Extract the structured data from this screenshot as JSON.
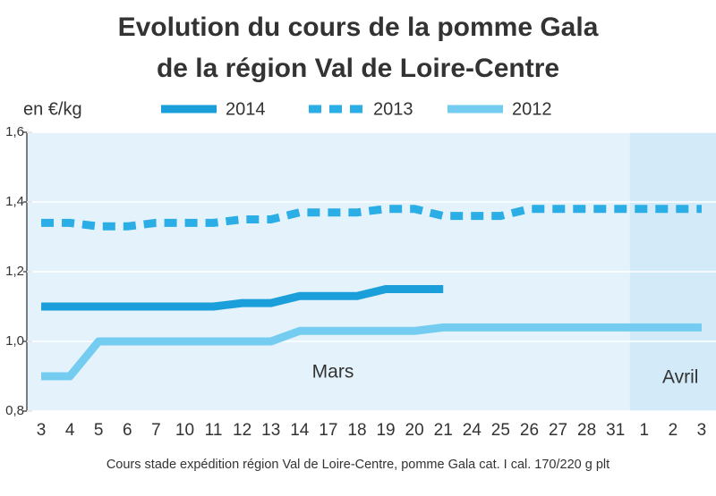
{
  "chart_data": {
    "type": "line",
    "title": "Evolution du cours de la pomme Gala",
    "subtitle": "de la région Val de Loire-Centre",
    "y_label": "en €/kg",
    "source": "Cours stade expédition région Val de Loire-Centre, pomme Gala cat. I cal. 170/220 g plt",
    "annotations": [
      "Mars",
      "Avril"
    ],
    "categories": [
      "3",
      "4",
      "5",
      "6",
      "7",
      "10",
      "11",
      "12",
      "13",
      "14",
      "17",
      "18",
      "19",
      "20",
      "21",
      "24",
      "25",
      "26",
      "27",
      "28",
      "31",
      "1",
      "2",
      "3"
    ],
    "series": [
      {
        "name": "2014",
        "color": "#1a9fdb",
        "dashed": false,
        "values": [
          1.1,
          1.1,
          1.1,
          1.1,
          1.1,
          1.1,
          1.1,
          1.11,
          1.11,
          1.13,
          1.13,
          1.13,
          1.15,
          1.15,
          1.15,
          null,
          null,
          null,
          null,
          null,
          null,
          null,
          null,
          null
        ]
      },
      {
        "name": "2013",
        "color": "#2aaee5",
        "dashed": true,
        "values": [
          1.34,
          1.34,
          1.33,
          1.33,
          1.34,
          1.34,
          1.34,
          1.35,
          1.35,
          1.37,
          1.37,
          1.37,
          1.38,
          1.38,
          1.36,
          1.36,
          1.36,
          1.38,
          1.38,
          1.38,
          1.38,
          1.38,
          1.38,
          1.38
        ]
      },
      {
        "name": "2012",
        "color": "#74cdf0",
        "dashed": false,
        "values": [
          0.9,
          0.9,
          1.0,
          1.0,
          1.0,
          1.0,
          1.0,
          1.0,
          1.0,
          1.03,
          1.03,
          1.03,
          1.03,
          1.03,
          1.04,
          1.04,
          1.04,
          1.04,
          1.04,
          1.04,
          1.04,
          1.04,
          1.04,
          1.04
        ]
      }
    ],
    "ylim": [
      0.8,
      1.6
    ],
    "yticks": [
      {
        "value": 0.8,
        "label": "0,8"
      },
      {
        "value": 1.0,
        "label": "1,0"
      },
      {
        "value": 1.2,
        "label": "1,2"
      },
      {
        "value": 1.4,
        "label": "1,4"
      },
      {
        "value": 1.6,
        "label": "1,6"
      }
    ],
    "grid": true
  }
}
